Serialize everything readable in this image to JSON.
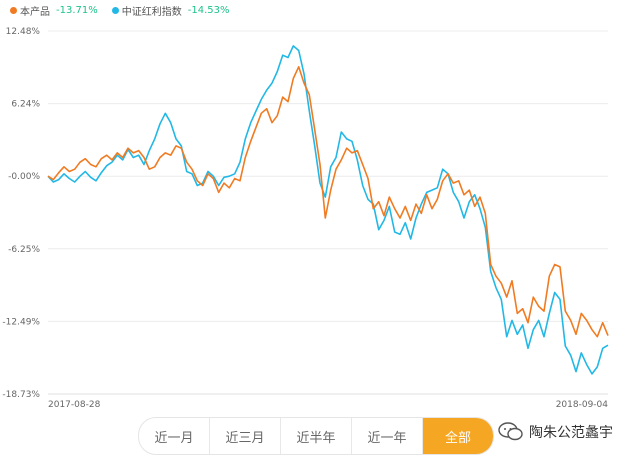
{
  "legend": {
    "items": [
      {
        "name": "本产品",
        "value": "-13.71%",
        "color": "#f07b22"
      },
      {
        "name": "中证红利指数",
        "value": "-14.53%",
        "color": "#22b8e6"
      }
    ]
  },
  "tabs": [
    {
      "label": "近一月",
      "active": false
    },
    {
      "label": "近三月",
      "active": false
    },
    {
      "label": "近半年",
      "active": false
    },
    {
      "label": "近一年",
      "active": false
    },
    {
      "label": "全部",
      "active": true
    }
  ],
  "watermark": {
    "text": "陶朱公范蠡宇"
  },
  "chart_data": {
    "type": "line",
    "x_labels": [
      "2017-08-28",
      "2018-09-04"
    ],
    "y_ticks": [
      "12.48%",
      "6.24%",
      "-0.00%",
      "-6.25%",
      "-12.49%",
      "-18.73%"
    ],
    "ylim": [
      -18.73,
      12.48
    ],
    "grid": true,
    "series": [
      {
        "name": "本产品",
        "color": "#f07b22",
        "values": [
          0,
          -0.3,
          0.3,
          0.8,
          0.4,
          0.6,
          1.2,
          1.5,
          1.0,
          0.8,
          1.5,
          1.8,
          1.4,
          2.0,
          1.6,
          2.4,
          2.0,
          2.2,
          1.6,
          0.6,
          0.8,
          1.6,
          2.0,
          1.8,
          2.6,
          2.4,
          1.2,
          0.6,
          -0.4,
          -0.8,
          0.2,
          -0.2,
          -1.4,
          -0.6,
          -1.0,
          -0.2,
          -0.4,
          1.6,
          3.0,
          4.2,
          5.4,
          5.8,
          4.6,
          5.2,
          6.8,
          6.4,
          8.4,
          9.4,
          8.0,
          7.0,
          4.0,
          1.0,
          -3.6,
          -1.2,
          0.6,
          1.4,
          2.4,
          2.0,
          2.2,
          1.0,
          -0.2,
          -2.8,
          -2.2,
          -3.4,
          -1.8,
          -2.8,
          -3.6,
          -2.6,
          -3.8,
          -2.4,
          -3.2,
          -1.6,
          -2.8,
          -2.0,
          -0.4,
          0.2,
          -0.6,
          -0.4,
          -1.6,
          -1.2,
          -2.6,
          -1.8,
          -3.2,
          -7.6,
          -8.6,
          -9.2,
          -10.4,
          -9.0,
          -11.8,
          -11.4,
          -12.6,
          -10.4,
          -11.2,
          -11.6,
          -8.6,
          -7.6,
          -7.8,
          -11.6,
          -12.4,
          -13.6,
          -11.8,
          -12.4,
          -13.2,
          -13.8,
          -12.6,
          -13.71
        ]
      },
      {
        "name": "中证红利指数",
        "color": "#22b8e6",
        "values": [
          0,
          -0.5,
          -0.3,
          0.2,
          -0.2,
          -0.5,
          0,
          0.4,
          -0.1,
          -0.4,
          0.3,
          0.9,
          1.2,
          1.8,
          1.4,
          2.3,
          1.6,
          1.8,
          1.0,
          2.2,
          3.2,
          4.5,
          5.4,
          4.6,
          3.2,
          2.6,
          0.4,
          0.2,
          -0.8,
          -0.6,
          0.4,
          0,
          -0.8,
          -0.1,
          0,
          0.2,
          1.2,
          3.2,
          4.6,
          5.6,
          6.6,
          7.4,
          8.0,
          9.0,
          10.4,
          10.2,
          11.2,
          10.8,
          8.8,
          5.6,
          2.6,
          -0.6,
          -1.8,
          0.8,
          1.6,
          3.8,
          3.2,
          3.0,
          1.4,
          -0.8,
          -2.0,
          -2.4,
          -4.6,
          -3.8,
          -2.6,
          -4.8,
          -5.0,
          -4.0,
          -5.4,
          -3.6,
          -2.4,
          -1.4,
          -1.2,
          -1.0,
          0.6,
          0.2,
          -1.4,
          -2.2,
          -3.6,
          -2.2,
          -1.6,
          -2.8,
          -4.4,
          -8.2,
          -9.6,
          -10.6,
          -13.8,
          -12.4,
          -13.6,
          -12.8,
          -14.8,
          -13.2,
          -12.4,
          -13.8,
          -11.8,
          -10.0,
          -10.6,
          -14.6,
          -15.4,
          -16.8,
          -15.2,
          -16.2,
          -17.0,
          -16.4,
          -14.8,
          -14.53
        ]
      }
    ]
  }
}
